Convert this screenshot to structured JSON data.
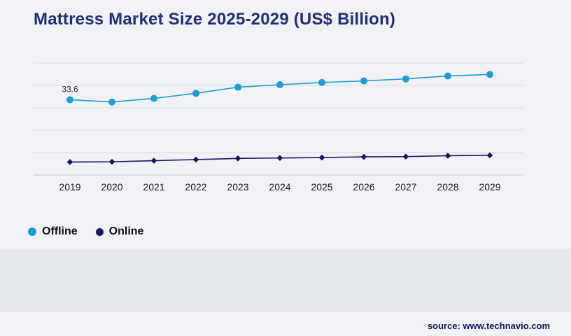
{
  "page": {
    "title": "Mattress Market Size 2025-2029 (US$ Billion)",
    "source": "source: www.technavio.com"
  },
  "colors": {
    "offline": "#1e9cd7",
    "online": "#1b1464",
    "gridline": "#d9dce1",
    "axis": "#c4c8cf",
    "tick_text": "#1a1a1a",
    "annotation_text": "#2b2b2b"
  },
  "legend": [
    {
      "label": "Offline",
      "color": "#1e9cd7"
    },
    {
      "label": "Online",
      "color": "#1b1464"
    }
  ],
  "chart_data": {
    "type": "line",
    "title": "Mattress Market Size 2025-2029 (US$ Billion)",
    "x": [
      2019,
      2020,
      2021,
      2022,
      2023,
      2024,
      2025,
      2026,
      2027,
      2028,
      2029
    ],
    "series": [
      {
        "name": "Offline",
        "color": "#1e9cd7",
        "marker": "circle",
        "values": [
          33.6,
          32.6,
          34.2,
          36.5,
          39.2,
          40.3,
          41.3,
          42.0,
          42.9,
          44.2,
          44.9
        ]
      },
      {
        "name": "Online",
        "color": "#1b1464",
        "marker": "diamond",
        "values": [
          5.8,
          5.9,
          6.4,
          6.9,
          7.4,
          7.6,
          7.8,
          8.1,
          8.2,
          8.6,
          8.8
        ]
      }
    ],
    "annotation": {
      "text": "33.6",
      "series": "Offline",
      "x": 2019
    },
    "ylim": [
      0,
      50
    ],
    "grid_step": 10,
    "grid": true,
    "y_axis_labels": false,
    "legend_position": "bottom-left"
  }
}
